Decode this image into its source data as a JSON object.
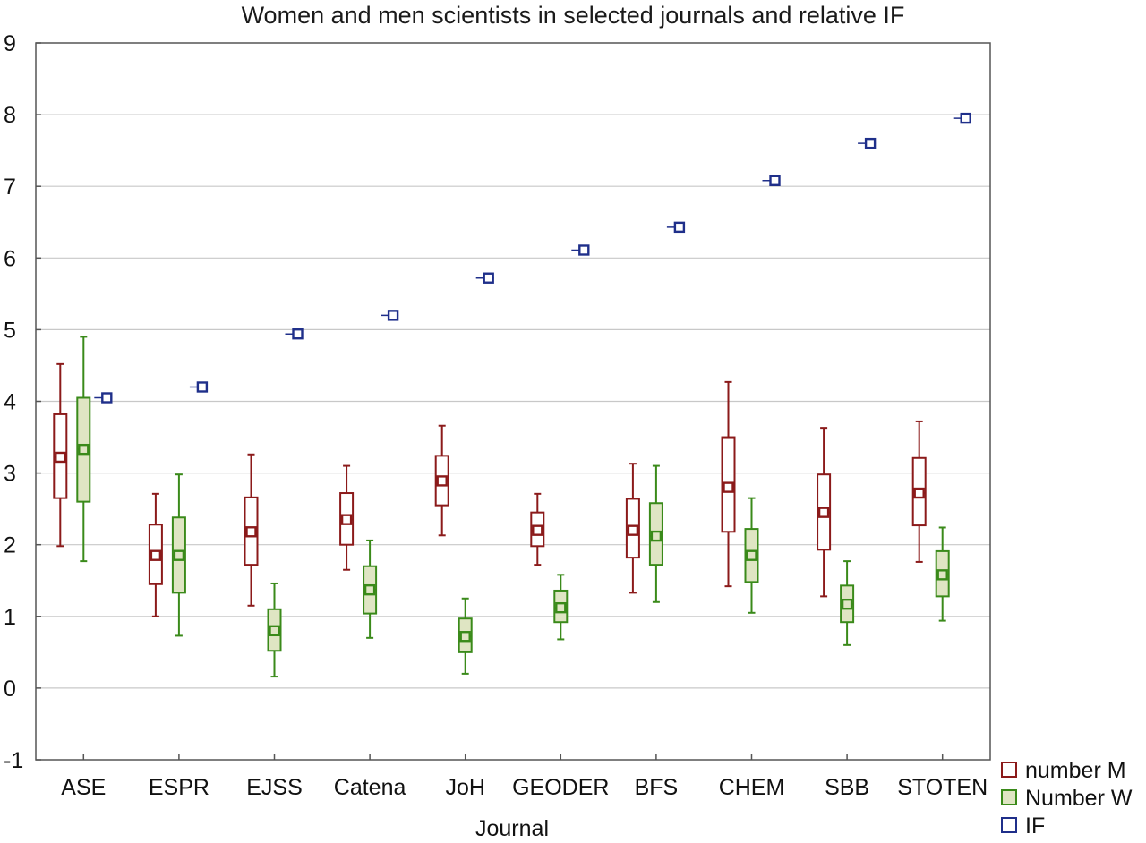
{
  "chart_data": {
    "type": "boxplot",
    "title": "Women and men scientists in selected journals and relative IF",
    "xlabel": "Journal",
    "ylabel": "",
    "ylim": [
      -1,
      9
    ],
    "yticks": [
      -1,
      0,
      1,
      2,
      3,
      4,
      5,
      6,
      7,
      8,
      9
    ],
    "grid": true,
    "legend_position": "bottom-right",
    "categories": [
      "ASE",
      "ESPR",
      "EJSS",
      "Catena",
      "JoH",
      "GEODER",
      "BFS",
      "CHEM",
      "SBB",
      "STOTEN"
    ],
    "colors": {
      "m_stroke": "#8b1a1a",
      "w_stroke": "#3a8a1a",
      "w_fill": "#dfe5c3",
      "if_stroke": "#1f2f8a",
      "grid": "#c8c8c8",
      "frame": "#555555"
    },
    "series": [
      {
        "name": "number M",
        "kind": "box",
        "mean": [
          3.22,
          1.85,
          2.18,
          2.35,
          2.89,
          2.2,
          2.2,
          2.8,
          2.45,
          2.72
        ],
        "box_low": [
          2.65,
          1.45,
          1.72,
          2.0,
          2.55,
          1.98,
          1.82,
          2.18,
          1.93,
          2.27
        ],
        "box_high": [
          3.82,
          2.28,
          2.66,
          2.72,
          3.24,
          2.45,
          2.64,
          3.5,
          2.98,
          3.21
        ],
        "whisker_low": [
          1.98,
          1.0,
          1.15,
          1.65,
          2.13,
          1.72,
          1.33,
          1.42,
          1.28,
          1.76
        ],
        "whisker_high": [
          4.52,
          2.71,
          3.26,
          3.1,
          3.66,
          2.71,
          3.13,
          4.27,
          3.63,
          3.72
        ]
      },
      {
        "name": "Number W",
        "kind": "box",
        "mean": [
          3.33,
          1.85,
          0.8,
          1.37,
          0.72,
          1.12,
          2.12,
          1.85,
          1.17,
          1.58
        ],
        "box_low": [
          2.6,
          1.33,
          0.52,
          1.04,
          0.5,
          0.92,
          1.72,
          1.48,
          0.92,
          1.28
        ],
        "box_high": [
          4.05,
          2.38,
          1.1,
          1.7,
          0.97,
          1.36,
          2.58,
          2.22,
          1.43,
          1.91
        ],
        "whisker_low": [
          1.77,
          0.73,
          0.16,
          0.7,
          0.2,
          0.68,
          1.2,
          1.05,
          0.6,
          0.94
        ],
        "whisker_high": [
          4.9,
          2.98,
          1.46,
          2.06,
          1.25,
          1.58,
          3.1,
          2.65,
          1.77,
          2.24
        ]
      },
      {
        "name": "IF",
        "kind": "point",
        "values": [
          4.05,
          4.2,
          4.94,
          5.2,
          5.72,
          6.11,
          6.43,
          7.08,
          7.6,
          7.95
        ]
      }
    ]
  }
}
